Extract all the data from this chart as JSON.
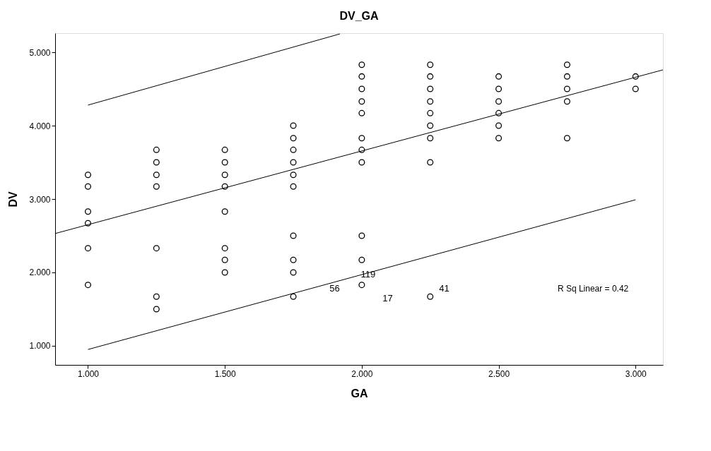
{
  "chart_data": {
    "type": "scatter",
    "title": "DV_GA",
    "xlabel": "GA",
    "ylabel": "DV",
    "xlim": [
      0.88,
      3.1
    ],
    "ylim": [
      0.74,
      5.26
    ],
    "xticks": [
      {
        "value": 1,
        "label": "1.000"
      },
      {
        "value": 1.5,
        "label": "1.500"
      },
      {
        "value": 2,
        "label": "2.000"
      },
      {
        "value": 2.5,
        "label": "2.500"
      },
      {
        "value": 3,
        "label": "3.000"
      }
    ],
    "yticks": [
      {
        "value": 1,
        "label": "1.000"
      },
      {
        "value": 2,
        "label": "2.000"
      },
      {
        "value": 3,
        "label": "3.000"
      },
      {
        "value": 4,
        "label": "4.000"
      },
      {
        "value": 5,
        "label": "5.000"
      }
    ],
    "grid": false,
    "series": [
      {
        "color": "#000000",
        "x": [
          1,
          1,
          1,
          1,
          1,
          1,
          1.25,
          1.25,
          1.25,
          1.25,
          1.25,
          1.25,
          1.25,
          1.5,
          1.5,
          1.5,
          1.5,
          1.5,
          1.5,
          1.5,
          1.5,
          1.75,
          1.75,
          1.75,
          1.75,
          1.75,
          1.75,
          1.75,
          1.75,
          1.75,
          1.75,
          2,
          2,
          2,
          2,
          2,
          2,
          2,
          2,
          2,
          2,
          2,
          2.25,
          2.25,
          2.25,
          2.25,
          2.25,
          2.25,
          2.25,
          2.25,
          2.25,
          2.5,
          2.5,
          2.5,
          2.5,
          2.5,
          2.5,
          2.75,
          2.75,
          2.75,
          2.75,
          2.75,
          3,
          3
        ],
        "values": [
          3.33,
          3.17,
          2.83,
          2.67,
          2.33,
          1.83,
          3.67,
          3.5,
          3.33,
          3.17,
          2.33,
          1.67,
          1.5,
          3.67,
          3.5,
          3.33,
          3.17,
          2.83,
          2.33,
          2.17,
          2.0,
          4.0,
          3.83,
          3.67,
          3.5,
          3.33,
          3.17,
          2.5,
          2.17,
          2.0,
          1.67,
          4.83,
          4.67,
          4.5,
          4.33,
          4.17,
          3.83,
          3.67,
          3.5,
          2.5,
          2.17,
          1.83,
          4.83,
          4.67,
          4.5,
          4.33,
          4.17,
          4.0,
          3.83,
          3.5,
          1.67,
          4.67,
          4.5,
          4.33,
          4.17,
          4.0,
          3.83,
          4.83,
          4.67,
          4.5,
          4.33,
          3.83,
          4.67,
          4.5
        ]
      },
      {
        "type": "line",
        "color": "#000000",
        "x": [
          0.88,
          3.1
        ],
        "values": [
          2.53,
          4.76
        ]
      },
      {
        "type": "line",
        "color": "#000000",
        "x": [
          1,
          1.92
        ],
        "values": [
          4.28,
          5.25
        ]
      },
      {
        "type": "line",
        "color": "#000000",
        "x": [
          1,
          3
        ],
        "values": [
          0.95,
          2.99
        ]
      }
    ],
    "annotations": [
      "56",
      "119",
      "17",
      "41",
      "R Sq Linear = 0.42"
    ]
  }
}
